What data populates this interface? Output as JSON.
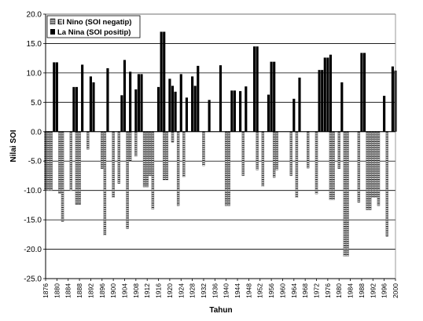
{
  "chart_data": {
    "type": "bar",
    "title": "",
    "xlabel": "Tahun",
    "ylabel": "Nilai SOI",
    "ylim": [
      -25,
      20
    ],
    "y_tick_step": 5,
    "y_tick_labels": [
      "20.0",
      "15.0",
      "10.0",
      "5.0",
      "0.0",
      "-5.0",
      "-10.0",
      "-15.0",
      "-20.0",
      "-25.0"
    ],
    "xlim": [
      1876,
      2000
    ],
    "x_tick_labels": [
      "1876",
      "1880",
      "1884",
      "1888",
      "1892",
      "1896",
      "1900",
      "1904",
      "1908",
      "1912",
      "1916",
      "1920",
      "1924",
      "1928",
      "1932",
      "1936",
      "1940",
      "1944",
      "1948",
      "1952",
      "1956",
      "1960",
      "1964",
      "1968",
      "1972",
      "1976",
      "1980",
      "1984",
      "1988",
      "1992",
      "1996",
      "2000"
    ],
    "grid": "horizontal",
    "legend_position": "top-left",
    "colors": {
      "el_nino_fill": "#ffffff",
      "el_nino_stripe": "#000000",
      "la_nina": "#000000",
      "grid": "#000000",
      "frame": "#808080"
    },
    "series": [
      {
        "name": "El Nino (SOI negatip)",
        "pattern": "horizontal-stripes",
        "points": [
          [
            1876,
            -10.0
          ],
          [
            1877,
            -10.0
          ],
          [
            1878,
            -10.0
          ],
          [
            1881,
            -10.5
          ],
          [
            1882,
            -15.3
          ],
          [
            1885,
            -10.0
          ],
          [
            1887,
            -12.4
          ],
          [
            1888,
            -12.4
          ],
          [
            1891,
            -3.0
          ],
          [
            1896,
            -6.3
          ],
          [
            1897,
            -17.6
          ],
          [
            1900,
            -11.2
          ],
          [
            1902,
            -8.8
          ],
          [
            1905,
            -16.5
          ],
          [
            1906,
            -5.0
          ],
          [
            1908,
            -4.2
          ],
          [
            1911,
            -9.4
          ],
          [
            1912,
            -9.4
          ],
          [
            1913,
            -7.5
          ],
          [
            1914,
            -13.2
          ],
          [
            1918,
            -8.2
          ],
          [
            1919,
            -8.2
          ],
          [
            1921,
            -1.8
          ],
          [
            1923,
            -12.6
          ],
          [
            1925,
            -7.7
          ],
          [
            1932,
            -5.8
          ],
          [
            1940,
            -12.6
          ],
          [
            1941,
            -12.6
          ],
          [
            1946,
            -7.5
          ],
          [
            1951,
            -6.5
          ],
          [
            1953,
            -9.3
          ],
          [
            1957,
            -7.8
          ],
          [
            1958,
            -6.5
          ],
          [
            1963,
            -7.5
          ],
          [
            1965,
            -11.2
          ],
          [
            1969,
            -6.2
          ],
          [
            1972,
            -10.6
          ],
          [
            1977,
            -11.6
          ],
          [
            1978,
            -11.6
          ],
          [
            1980,
            -6.3
          ],
          [
            1982,
            -21.2
          ],
          [
            1983,
            -21.2
          ],
          [
            1987,
            -12.0
          ],
          [
            1990,
            -13.3
          ],
          [
            1991,
            -13.3
          ],
          [
            1992,
            -11.2
          ],
          [
            1993,
            -11.2
          ],
          [
            1994,
            -12.6
          ],
          [
            1997,
            -17.8
          ]
        ]
      },
      {
        "name": "La Nina (SOI positip)",
        "pattern": "solid",
        "points": [
          [
            1879,
            11.8
          ],
          [
            1880,
            11.8
          ],
          [
            1886,
            7.6
          ],
          [
            1887,
            7.6
          ],
          [
            1889,
            11.4
          ],
          [
            1892,
            9.4
          ],
          [
            1893,
            8.4
          ],
          [
            1898,
            10.8
          ],
          [
            1903,
            6.2
          ],
          [
            1904,
            12.2
          ],
          [
            1906,
            10.2
          ],
          [
            1908,
            7.2
          ],
          [
            1909,
            9.8
          ],
          [
            1910,
            9.8
          ],
          [
            1916,
            7.6
          ],
          [
            1917,
            17.0
          ],
          [
            1918,
            17.0
          ],
          [
            1920,
            9.0
          ],
          [
            1921,
            7.8
          ],
          [
            1922,
            6.8
          ],
          [
            1924,
            9.8
          ],
          [
            1926,
            5.8
          ],
          [
            1928,
            9.4
          ],
          [
            1929,
            7.8
          ],
          [
            1930,
            11.2
          ],
          [
            1934,
            5.4
          ],
          [
            1938,
            11.3
          ],
          [
            1942,
            7.0
          ],
          [
            1943,
            7.0
          ],
          [
            1945,
            6.9
          ],
          [
            1947,
            7.7
          ],
          [
            1950,
            14.5
          ],
          [
            1951,
            14.5
          ],
          [
            1955,
            6.3
          ],
          [
            1956,
            11.9
          ],
          [
            1957,
            11.9
          ],
          [
            1964,
            5.6
          ],
          [
            1966,
            9.2
          ],
          [
            1973,
            10.5
          ],
          [
            1974,
            10.5
          ],
          [
            1975,
            12.6
          ],
          [
            1976,
            12.6
          ],
          [
            1977,
            13.1
          ],
          [
            1981,
            8.4
          ],
          [
            1988,
            13.4
          ],
          [
            1989,
            13.4
          ],
          [
            1996,
            6.1
          ],
          [
            1999,
            11.1
          ],
          [
            2000,
            10.4
          ]
        ]
      }
    ]
  }
}
